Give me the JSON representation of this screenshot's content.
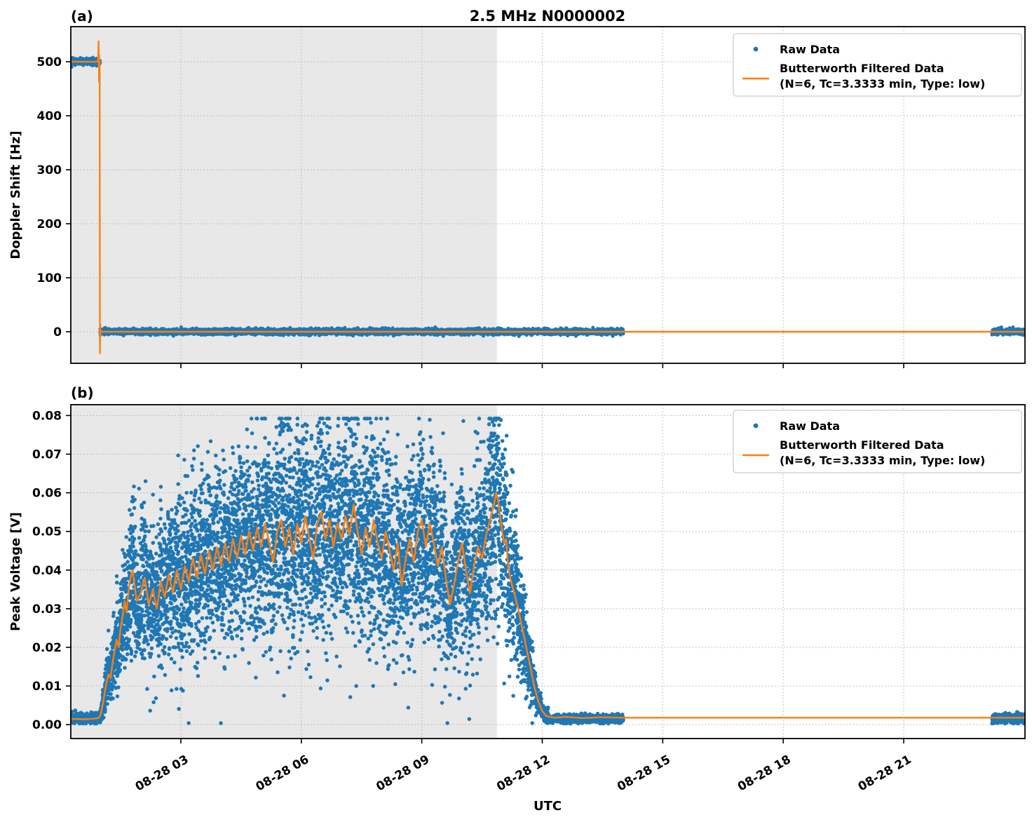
{
  "figure": {
    "title": "2.5 MHz N0000002",
    "xlabel": "UTC"
  },
  "colors": {
    "raw": "#1f77b4",
    "filtered": "#ff7f0e",
    "shade": "#e8e8e8",
    "grid": "#b0b0b0",
    "spine": "#000000",
    "legend_border": "#cccccc",
    "legend_bg": "#ffffff"
  },
  "legend": {
    "raw_label": "Raw Data",
    "filtered_label_line1": "Butterworth Filtered Data",
    "filtered_label_line2": "(N=6, Tc=3.3333 min, Type: low)"
  },
  "x_axis": {
    "label": "UTC",
    "xlim_hours": [
      0.26,
      24.02
    ],
    "unit": "hours since 08-28 00:00 UTC",
    "ticks": [
      {
        "hour": 3,
        "label": "08-28 03"
      },
      {
        "hour": 6,
        "label": "08-28 06"
      },
      {
        "hour": 9,
        "label": "08-28 09"
      },
      {
        "hour": 12,
        "label": "08-28 12"
      },
      {
        "hour": 15,
        "label": "08-28 15"
      },
      {
        "hour": 18,
        "label": "08-28 18"
      },
      {
        "hour": 21,
        "label": "08-28 21"
      }
    ]
  },
  "panels": [
    {
      "tag": "(a)",
      "ylabel": "Doppler Shift [Hz]"
    },
    {
      "tag": "(b)",
      "ylabel": "Peak Voltage [V]"
    }
  ],
  "chart_data": [
    {
      "type": "scatter",
      "panel": "a",
      "ylabel": "Doppler Shift [Hz]",
      "ylim": [
        -58.5,
        565
      ],
      "yticks": [
        0,
        100,
        200,
        300,
        400,
        500
      ],
      "ytick_labels": [
        "0",
        "100",
        "200",
        "300",
        "400",
        "500"
      ],
      "shaded_region": {
        "t0": 0.26,
        "t1": 10.87
      },
      "raw": {
        "name": "Raw Data",
        "segments": [
          {
            "t0": 0.26,
            "t1": 0.99,
            "v": 500,
            "sigma": 3.0,
            "step": 0.0022
          },
          {
            "t0": 0.99,
            "t1": 14.02,
            "v": 0,
            "sigma": 2.5,
            "step": 0.002
          },
          {
            "t0": 23.2,
            "t1": 24.02,
            "v": 0,
            "sigma": 2.5,
            "step": 0.002
          }
        ]
      },
      "filtered": {
        "name": "Butterworth Filtered Data (N=6, Tc=3.3333 min, Type: low)",
        "points": [
          [
            0.26,
            500
          ],
          [
            0.92,
            500
          ],
          [
            0.935,
            502
          ],
          [
            0.945,
            516
          ],
          [
            0.952,
            538
          ],
          [
            0.958,
            492
          ],
          [
            0.963,
            462
          ],
          [
            0.968,
            512
          ],
          [
            0.974,
            488
          ],
          [
            0.979,
            502
          ],
          [
            0.983,
            120
          ],
          [
            0.986,
            -40
          ],
          [
            0.99,
            -8
          ],
          [
            0.994,
            14
          ],
          [
            0.998,
            -6
          ],
          [
            1.003,
            4
          ],
          [
            1.01,
            -1
          ],
          [
            1.02,
            0
          ],
          [
            3,
            0
          ],
          [
            6,
            0
          ],
          [
            9,
            0
          ],
          [
            12,
            0
          ],
          [
            14.02,
            0
          ],
          [
            18,
            0
          ],
          [
            23.2,
            0
          ],
          [
            24.02,
            0
          ]
        ]
      }
    },
    {
      "type": "scatter",
      "panel": "b",
      "ylabel": "Peak Voltage [V]",
      "ylim": [
        -0.0036,
        0.0828
      ],
      "yticks": [
        0,
        0.01,
        0.02,
        0.03,
        0.04,
        0.05,
        0.06,
        0.07,
        0.08
      ],
      "ytick_labels": [
        "0.00",
        "0.01",
        "0.02",
        "0.03",
        "0.04",
        "0.05",
        "0.06",
        "0.07",
        "0.08"
      ],
      "shaded_region": {
        "t0": 0.26,
        "t1": 10.87
      },
      "raw": {
        "name": "Raw Data",
        "baseline_segments": [
          {
            "t0": 0.26,
            "t1": 0.98,
            "v": 0.0016,
            "sigma": 0.0006,
            "step": 0.002
          },
          {
            "t0": 12.15,
            "t1": 14.02,
            "v": 0.0015,
            "sigma": 0.0005,
            "step": 0.002
          },
          {
            "t0": 23.2,
            "t1": 24.02,
            "v": 0.0016,
            "sigma": 0.0006,
            "step": 0.002
          }
        ],
        "cloud": {
          "t0": 0.98,
          "t1": 12.15,
          "step": 0.0016,
          "sigma_rel": 0.26,
          "sigma_min": 0.0009,
          "clip_min": 0.0004,
          "clip_max": 0.0792,
          "spike_prob": 0.05,
          "spike_scale": 0.009,
          "dip_prob": 0.04,
          "dip_scale": 0.011
        }
      },
      "filtered": {
        "name": "Butterworth Filtered Data (N=6, Tc=3.3333 min, Type: low)",
        "points": [
          [
            0.26,
            0.0015
          ],
          [
            0.6,
            0.0014
          ],
          [
            0.9,
            0.0016
          ],
          [
            0.96,
            0.0018
          ],
          [
            1.0,
            0.0025
          ],
          [
            1.05,
            0.005
          ],
          [
            1.1,
            0.008
          ],
          [
            1.15,
            0.011
          ],
          [
            1.2,
            0.013
          ],
          [
            1.25,
            0.012
          ],
          [
            1.3,
            0.016
          ],
          [
            1.35,
            0.019
          ],
          [
            1.4,
            0.022
          ],
          [
            1.45,
            0.02
          ],
          [
            1.5,
            0.025
          ],
          [
            1.55,
            0.028
          ],
          [
            1.6,
            0.032
          ],
          [
            1.65,
            0.029
          ],
          [
            1.7,
            0.035
          ],
          [
            1.75,
            0.038
          ],
          [
            1.8,
            0.04
          ],
          [
            1.9,
            0.032
          ],
          [
            2.0,
            0.034
          ],
          [
            2.1,
            0.038
          ],
          [
            2.2,
            0.031
          ],
          [
            2.3,
            0.035
          ],
          [
            2.4,
            0.03
          ],
          [
            2.5,
            0.037
          ],
          [
            2.6,
            0.033
          ],
          [
            2.7,
            0.039
          ],
          [
            2.8,
            0.034
          ],
          [
            2.9,
            0.04
          ],
          [
            3.0,
            0.035
          ],
          [
            3.1,
            0.041
          ],
          [
            3.2,
            0.037
          ],
          [
            3.3,
            0.043
          ],
          [
            3.4,
            0.038
          ],
          [
            3.5,
            0.044
          ],
          [
            3.6,
            0.039
          ],
          [
            3.7,
            0.045
          ],
          [
            3.8,
            0.04
          ],
          [
            3.9,
            0.046
          ],
          [
            4.0,
            0.041
          ],
          [
            4.1,
            0.047
          ],
          [
            4.2,
            0.042
          ],
          [
            4.3,
            0.048
          ],
          [
            4.4,
            0.043
          ],
          [
            4.5,
            0.049
          ],
          [
            4.6,
            0.044
          ],
          [
            4.7,
            0.05
          ],
          [
            4.8,
            0.045
          ],
          [
            4.9,
            0.051
          ],
          [
            5.0,
            0.046
          ],
          [
            5.1,
            0.052
          ],
          [
            5.2,
            0.047
          ],
          [
            5.3,
            0.042
          ],
          [
            5.4,
            0.05
          ],
          [
            5.5,
            0.053
          ],
          [
            5.6,
            0.046
          ],
          [
            5.7,
            0.051
          ],
          [
            5.8,
            0.044
          ],
          [
            5.9,
            0.052
          ],
          [
            6.0,
            0.047
          ],
          [
            6.1,
            0.054
          ],
          [
            6.2,
            0.048
          ],
          [
            6.3,
            0.043
          ],
          [
            6.4,
            0.052
          ],
          [
            6.5,
            0.055
          ],
          [
            6.6,
            0.048
          ],
          [
            6.7,
            0.053
          ],
          [
            6.8,
            0.046
          ],
          [
            6.9,
            0.052
          ],
          [
            7.0,
            0.048
          ],
          [
            7.1,
            0.054
          ],
          [
            7.2,
            0.049
          ],
          [
            7.3,
            0.057
          ],
          [
            7.4,
            0.05
          ],
          [
            7.5,
            0.044
          ],
          [
            7.6,
            0.051
          ],
          [
            7.7,
            0.046
          ],
          [
            7.8,
            0.053
          ],
          [
            7.9,
            0.047
          ],
          [
            8.0,
            0.043
          ],
          [
            8.1,
            0.05
          ],
          [
            8.2,
            0.045
          ],
          [
            8.3,
            0.04
          ],
          [
            8.4,
            0.047
          ],
          [
            8.5,
            0.036
          ],
          [
            8.6,
            0.043
          ],
          [
            8.7,
            0.048
          ],
          [
            8.8,
            0.042
          ],
          [
            8.9,
            0.05
          ],
          [
            9.0,
            0.053
          ],
          [
            9.1,
            0.046
          ],
          [
            9.2,
            0.052
          ],
          [
            9.3,
            0.047
          ],
          [
            9.4,
            0.041
          ],
          [
            9.5,
            0.046
          ],
          [
            9.6,
            0.038
          ],
          [
            9.7,
            0.031
          ],
          [
            9.8,
            0.036
          ],
          [
            9.9,
            0.042
          ],
          [
            10.0,
            0.047
          ],
          [
            10.1,
            0.04
          ],
          [
            10.2,
            0.034
          ],
          [
            10.3,
            0.041
          ],
          [
            10.4,
            0.046
          ],
          [
            10.5,
            0.043
          ],
          [
            10.6,
            0.049
          ],
          [
            10.7,
            0.053
          ],
          [
            10.8,
            0.057
          ],
          [
            10.85,
            0.06
          ],
          [
            10.9,
            0.058
          ],
          [
            11.0,
            0.05
          ],
          [
            11.05,
            0.047
          ],
          [
            11.1,
            0.048
          ],
          [
            11.15,
            0.041
          ],
          [
            11.2,
            0.038
          ],
          [
            11.3,
            0.034
          ],
          [
            11.4,
            0.03
          ],
          [
            11.5,
            0.025
          ],
          [
            11.6,
            0.02
          ],
          [
            11.7,
            0.015
          ],
          [
            11.8,
            0.01
          ],
          [
            11.9,
            0.006
          ],
          [
            12.0,
            0.0035
          ],
          [
            12.1,
            0.0022
          ],
          [
            12.3,
            0.0018
          ],
          [
            12.6,
            0.002
          ],
          [
            13.0,
            0.0017
          ],
          [
            13.5,
            0.0019
          ],
          [
            14.0,
            0.0018
          ],
          [
            16,
            0.0018
          ],
          [
            20,
            0.0018
          ],
          [
            23.2,
            0.0018
          ],
          [
            24.02,
            0.0018
          ]
        ]
      }
    }
  ]
}
